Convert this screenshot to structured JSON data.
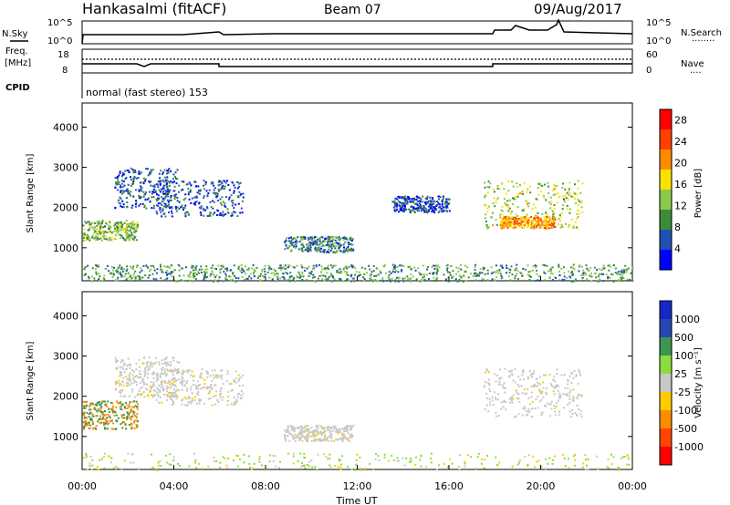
{
  "header": {
    "station": "Hankasalmi (fitACF)",
    "beam": "Beam 07",
    "date": "09/Aug/2017"
  },
  "labels": {
    "nsky": "N.Sky",
    "nsearch": "N.Search",
    "nsearch_ind": "........",
    "freq_top": "Freq.",
    "freq_unit": "[MHz]",
    "nave": "Nave",
    "nave_ind": "....",
    "cpid": "CPID",
    "cpid_text": "normal (fast stereo) 153",
    "time_axis": "Time UT",
    "slant_range": "Slant Range [km]",
    "power_label": "Power [dB]",
    "velocity_label": "Velocity [m s⁻¹]"
  },
  "strip_ticks": {
    "nsky_left": [
      "10^5",
      "10^0"
    ],
    "nsearch_right": [
      "10^5",
      "10^0"
    ],
    "freq_left": [
      "18",
      "8"
    ],
    "nave_right": [
      "60",
      "0"
    ]
  },
  "colors": {
    "power_scale": [
      "#0000ff",
      "#2050b4",
      "#3c8c3c",
      "#8cc84c",
      "#fae100",
      "#ff8c00",
      "#ff4000",
      "#ff0000"
    ],
    "velocity_scale": [
      "#ff0000",
      "#ff4500",
      "#ff8c00",
      "#ffcc00",
      "#c8c8c8",
      "#8cdc3c",
      "#3c9650",
      "#2846b4",
      "#1428c8"
    ]
  },
  "chart_data": [
    {
      "type": "heatmap",
      "panel": "power",
      "xlabel": "Time UT",
      "ylabel": "Slant Range [km]",
      "x_ticks": [
        "00:00",
        "04:00",
        "08:00",
        "12:00",
        "16:00",
        "20:00",
        "00:00"
      ],
      "y_ticks": [
        1000,
        2000,
        3000,
        4000
      ],
      "xlim_hours": [
        0,
        24
      ],
      "ylim_km": [
        180,
        4600
      ],
      "colorbar": {
        "label": "Power [dB]",
        "ticks": [
          4,
          8,
          12,
          16,
          20,
          24,
          28
        ],
        "range": [
          0,
          30
        ]
      },
      "regions": [
        {
          "t0": 0.0,
          "t1": 2.4,
          "r0": 1200,
          "r1": 1700,
          "value": 12,
          "note": "early arc"
        },
        {
          "t0": 1.4,
          "t1": 4.2,
          "r0": 2000,
          "r1": 3000,
          "value": 6
        },
        {
          "t0": 3.2,
          "t1": 7.0,
          "r0": 1800,
          "r1": 2700,
          "value": 6
        },
        {
          "t0": 8.8,
          "t1": 11.8,
          "r0": 900,
          "r1": 1300,
          "value": 8
        },
        {
          "t0": 13.5,
          "t1": 16.0,
          "r0": 1900,
          "r1": 2300,
          "value": 5
        },
        {
          "t0": 17.5,
          "t1": 21.8,
          "r0": 1500,
          "r1": 2700,
          "value": 14
        },
        {
          "t0": 18.2,
          "t1": 20.6,
          "r0": 1500,
          "r1": 1800,
          "value": 20
        },
        {
          "t0": 0.0,
          "t1": 24.0,
          "r0": 180,
          "r1": 600,
          "value": 10,
          "note": "near range ground clutter"
        }
      ]
    },
    {
      "type": "heatmap",
      "panel": "velocity",
      "xlabel": "Time UT",
      "ylabel": "Slant Range [km]",
      "x_ticks": [
        "00:00",
        "04:00",
        "08:00",
        "12:00",
        "16:00",
        "20:00",
        "00:00"
      ],
      "y_ticks": [
        1000,
        2000,
        3000,
        4000
      ],
      "xlim_hours": [
        0,
        24
      ],
      "ylim_km": [
        180,
        4600
      ],
      "colorbar": {
        "label": "Velocity [m s⁻¹]",
        "ticks": [
          -1000,
          -500,
          -100,
          -25,
          25,
          100,
          500,
          1000
        ]
      },
      "regions": [
        {
          "t0": 0.0,
          "t1": 2.4,
          "r0": 1200,
          "r1": 1900,
          "value": -300,
          "note": "mixed green/orange"
        },
        {
          "t0": 1.4,
          "t1": 4.2,
          "r0": 2000,
          "r1": 3000,
          "value": 0
        },
        {
          "t0": 3.2,
          "t1": 7.0,
          "r0": 1800,
          "r1": 2700,
          "value": 0
        },
        {
          "t0": 8.8,
          "t1": 11.8,
          "r0": 900,
          "r1": 1300,
          "value": 0
        },
        {
          "t0": 17.5,
          "t1": 21.8,
          "r0": 1500,
          "r1": 2700,
          "value": 0
        },
        {
          "t0": 0.0,
          "t1": 24.0,
          "r0": 180,
          "r1": 600,
          "value": 50
        }
      ]
    }
  ]
}
